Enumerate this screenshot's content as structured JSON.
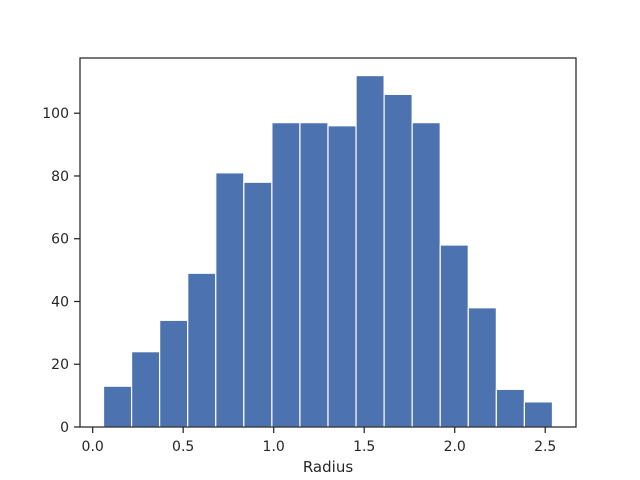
{
  "chart_data": {
    "type": "bar",
    "subtype": "histogram",
    "title": "",
    "xlabel": "Radius",
    "ylabel": "",
    "xlim": [
      -0.07,
      2.67
    ],
    "ylim": [
      0,
      117.6
    ],
    "xticks": [
      0.0,
      0.5,
      1.0,
      1.5,
      2.0,
      2.5
    ],
    "xtick_labels": [
      "0.0",
      "0.5",
      "1.0",
      "1.5",
      "2.0",
      "2.5"
    ],
    "yticks": [
      0,
      20,
      40,
      60,
      80,
      100
    ],
    "ytick_labels": [
      "0",
      "20",
      "40",
      "60",
      "80",
      "100"
    ],
    "grid": false,
    "bar_color": "#4c72b0",
    "bin_edges": [
      0.06,
      0.215,
      0.37,
      0.525,
      0.68,
      0.835,
      0.99,
      1.145,
      1.3,
      1.455,
      1.61,
      1.765,
      1.92,
      2.075,
      2.23,
      2.385,
      2.54
    ],
    "values": [
      13,
      24,
      34,
      49,
      81,
      78,
      97,
      97,
      96,
      112,
      106,
      97,
      58,
      38,
      12,
      8
    ]
  }
}
